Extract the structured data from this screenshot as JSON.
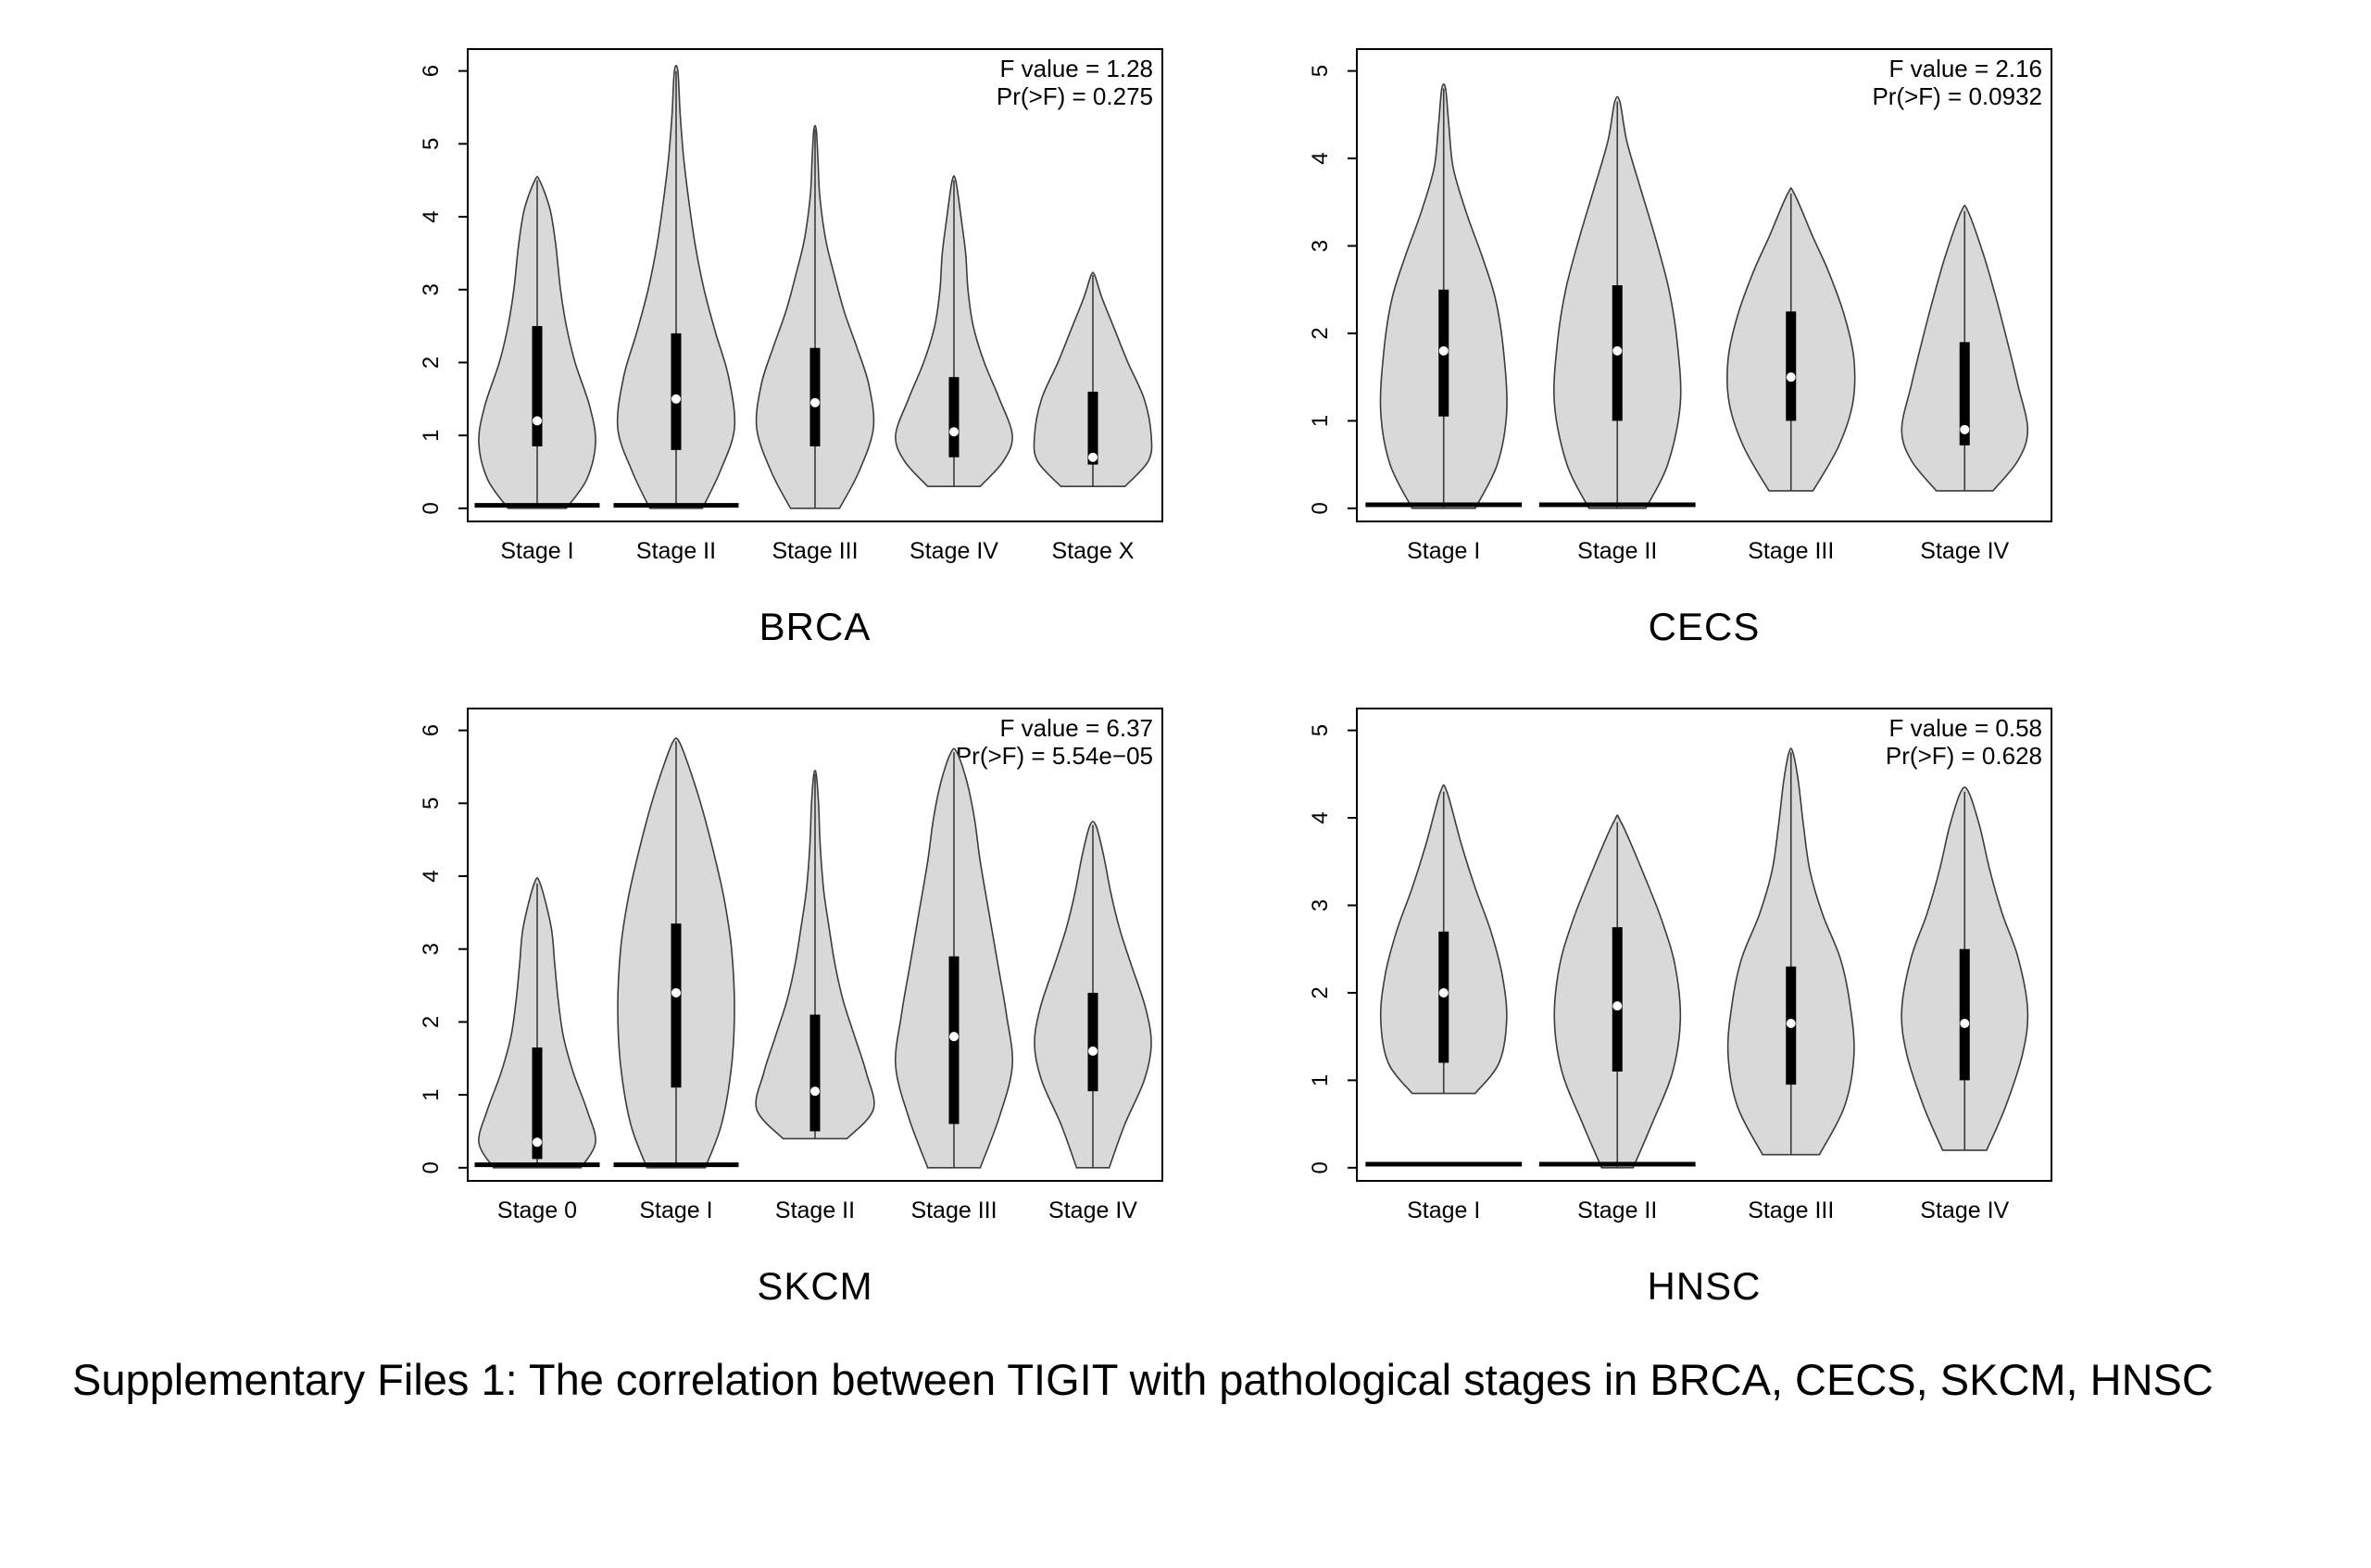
{
  "caption": "Supplementary Files 1: The correlation between TIGIT with pathological stages in BRCA, CECS, SKCM, HNSC",
  "colors": {
    "violin_fill": "#d9d9d9",
    "violin_stroke": "#3c3c3c",
    "box_color": "#000000",
    "median_color": "#ffffff",
    "axis_color": "#000000",
    "text_color": "#000000"
  },
  "chart_data": [
    {
      "type": "violin",
      "title": "BRCA",
      "stats": [
        "F value = 1.28",
        "Pr(>F) = 0.275"
      ],
      "ylabel": "",
      "ylim": [
        0,
        6
      ],
      "yticks": [
        0,
        1,
        2,
        3,
        4,
        5,
        6
      ],
      "categories": [
        "Stage I",
        "Stage II",
        "Stage III",
        "Stage IV",
        "Stage X"
      ],
      "violins": [
        {
          "category": "Stage I",
          "range": [
            0,
            4.5
          ],
          "box": [
            0.85,
            2.5
          ],
          "median": 1.2,
          "zero_line": true,
          "profile": [
            [
              0,
              0.5
            ],
            [
              0.4,
              0.85
            ],
            [
              0.9,
              1.0
            ],
            [
              1.4,
              0.9
            ],
            [
              2.0,
              0.65
            ],
            [
              2.5,
              0.5
            ],
            [
              3.0,
              0.4
            ],
            [
              3.6,
              0.32
            ],
            [
              4.1,
              0.22
            ],
            [
              4.5,
              0.04
            ]
          ]
        },
        {
          "category": "Stage II",
          "range": [
            0,
            6.0
          ],
          "box": [
            0.8,
            2.4
          ],
          "median": 1.5,
          "zero_line": true,
          "profile": [
            [
              0,
              0.45
            ],
            [
              0.5,
              0.75
            ],
            [
              1.1,
              1.0
            ],
            [
              1.8,
              0.9
            ],
            [
              2.4,
              0.68
            ],
            [
              3.0,
              0.48
            ],
            [
              3.6,
              0.33
            ],
            [
              4.2,
              0.22
            ],
            [
              4.8,
              0.13
            ],
            [
              5.4,
              0.07
            ],
            [
              6.0,
              0.03
            ]
          ]
        },
        {
          "category": "Stage III",
          "range": [
            0,
            5.2
          ],
          "box": [
            0.85,
            2.2
          ],
          "median": 1.45,
          "zero_line": false,
          "profile": [
            [
              0,
              0.42
            ],
            [
              0.5,
              0.75
            ],
            [
              1.1,
              1.0
            ],
            [
              1.7,
              0.92
            ],
            [
              2.2,
              0.72
            ],
            [
              2.7,
              0.5
            ],
            [
              3.2,
              0.33
            ],
            [
              3.7,
              0.18
            ],
            [
              4.3,
              0.08
            ],
            [
              4.8,
              0.05
            ],
            [
              5.2,
              0.02
            ]
          ]
        },
        {
          "category": "Stage IV",
          "range": [
            0.3,
            4.5
          ],
          "box": [
            0.7,
            1.8
          ],
          "median": 1.05,
          "zero_line": false,
          "profile": [
            [
              0.3,
              0.45
            ],
            [
              0.65,
              0.85
            ],
            [
              1.0,
              1.0
            ],
            [
              1.5,
              0.78
            ],
            [
              2.0,
              0.52
            ],
            [
              2.5,
              0.33
            ],
            [
              3.0,
              0.24
            ],
            [
              3.5,
              0.2
            ],
            [
              4.0,
              0.12
            ],
            [
              4.5,
              0.03
            ]
          ]
        },
        {
          "category": "Stage X",
          "range": [
            0.3,
            3.2
          ],
          "box": [
            0.6,
            1.6
          ],
          "median": 0.7,
          "zero_line": false,
          "profile": [
            [
              0.3,
              0.55
            ],
            [
              0.65,
              0.95
            ],
            [
              1.0,
              1.0
            ],
            [
              1.5,
              0.88
            ],
            [
              2.0,
              0.6
            ],
            [
              2.5,
              0.35
            ],
            [
              2.9,
              0.15
            ],
            [
              3.2,
              0.03
            ]
          ]
        }
      ]
    },
    {
      "type": "violin",
      "title": "CECS",
      "stats": [
        "F value = 2.16",
        "Pr(>F) = 0.0932"
      ],
      "ylabel": "",
      "ylim": [
        0,
        5
      ],
      "yticks": [
        0,
        1,
        2,
        3,
        4,
        5
      ],
      "categories": [
        "Stage I",
        "Stage II",
        "Stage III",
        "Stage IV"
      ],
      "violins": [
        {
          "category": "Stage I",
          "range": [
            0,
            4.8
          ],
          "box": [
            1.05,
            2.5
          ],
          "median": 1.8,
          "zero_line": true,
          "profile": [
            [
              0,
              0.5
            ],
            [
              0.5,
              0.85
            ],
            [
              1.1,
              1.0
            ],
            [
              1.8,
              0.95
            ],
            [
              2.4,
              0.82
            ],
            [
              2.9,
              0.6
            ],
            [
              3.4,
              0.35
            ],
            [
              3.9,
              0.15
            ],
            [
              4.4,
              0.08
            ],
            [
              4.8,
              0.03
            ]
          ]
        },
        {
          "category": "Stage II",
          "range": [
            0,
            4.65
          ],
          "box": [
            1.0,
            2.55
          ],
          "median": 1.8,
          "zero_line": true,
          "profile": [
            [
              0,
              0.45
            ],
            [
              0.5,
              0.8
            ],
            [
              1.2,
              1.0
            ],
            [
              1.9,
              0.95
            ],
            [
              2.5,
              0.82
            ],
            [
              3.1,
              0.6
            ],
            [
              3.7,
              0.35
            ],
            [
              4.2,
              0.15
            ],
            [
              4.65,
              0.04
            ]
          ]
        },
        {
          "category": "Stage III",
          "range": [
            0.2,
            3.6
          ],
          "box": [
            1.0,
            2.25
          ],
          "median": 1.5,
          "zero_line": false,
          "profile": [
            [
              0.2,
              0.35
            ],
            [
              0.7,
              0.75
            ],
            [
              1.2,
              0.98
            ],
            [
              1.7,
              1.0
            ],
            [
              2.2,
              0.85
            ],
            [
              2.7,
              0.6
            ],
            [
              3.1,
              0.35
            ],
            [
              3.6,
              0.05
            ]
          ]
        },
        {
          "category": "Stage IV",
          "range": [
            0.2,
            3.4
          ],
          "box": [
            0.72,
            1.9
          ],
          "median": 0.9,
          "zero_line": false,
          "profile": [
            [
              0.2,
              0.45
            ],
            [
              0.55,
              0.85
            ],
            [
              0.9,
              1.0
            ],
            [
              1.4,
              0.85
            ],
            [
              1.9,
              0.68
            ],
            [
              2.4,
              0.5
            ],
            [
              2.9,
              0.3
            ],
            [
              3.4,
              0.05
            ]
          ]
        }
      ]
    },
    {
      "type": "violin",
      "title": "SKCM",
      "stats": [
        "F value = 6.37",
        "Pr(>F) = 5.54e−05"
      ],
      "ylabel": "",
      "ylim": [
        0,
        6
      ],
      "yticks": [
        0,
        1,
        2,
        3,
        4,
        5,
        6
      ],
      "categories": [
        "Stage 0",
        "Stage I",
        "Stage II",
        "Stage III",
        "Stage IV"
      ],
      "violins": [
        {
          "category": "Stage 0",
          "range": [
            0,
            3.9
          ],
          "box": [
            0.12,
            1.65
          ],
          "median": 0.35,
          "zero_line": true,
          "profile": [
            [
              0,
              0.75
            ],
            [
              0.35,
              1.0
            ],
            [
              0.8,
              0.85
            ],
            [
              1.3,
              0.62
            ],
            [
              1.8,
              0.45
            ],
            [
              2.3,
              0.36
            ],
            [
              2.8,
              0.3
            ],
            [
              3.3,
              0.24
            ],
            [
              3.9,
              0.05
            ]
          ]
        },
        {
          "category": "Stage I",
          "range": [
            0,
            5.85
          ],
          "box": [
            1.1,
            3.35
          ],
          "median": 2.4,
          "zero_line": true,
          "profile": [
            [
              0,
              0.5
            ],
            [
              0.6,
              0.78
            ],
            [
              1.4,
              0.95
            ],
            [
              2.2,
              1.0
            ],
            [
              3.0,
              0.95
            ],
            [
              3.7,
              0.82
            ],
            [
              4.4,
              0.62
            ],
            [
              5.0,
              0.42
            ],
            [
              5.5,
              0.22
            ],
            [
              5.85,
              0.05
            ]
          ]
        },
        {
          "category": "Stage II",
          "range": [
            0.4,
            5.4
          ],
          "box": [
            0.5,
            2.1
          ],
          "median": 1.05,
          "zero_line": false,
          "profile": [
            [
              0.4,
              0.55
            ],
            [
              0.8,
              1.0
            ],
            [
              1.3,
              0.88
            ],
            [
              1.8,
              0.68
            ],
            [
              2.3,
              0.48
            ],
            [
              2.8,
              0.34
            ],
            [
              3.3,
              0.24
            ],
            [
              3.8,
              0.15
            ],
            [
              4.4,
              0.09
            ],
            [
              5.0,
              0.06
            ],
            [
              5.4,
              0.02
            ]
          ]
        },
        {
          "category": "Stage III",
          "range": [
            0,
            5.7
          ],
          "box": [
            0.6,
            2.9
          ],
          "median": 1.8,
          "zero_line": false,
          "profile": [
            [
              0,
              0.45
            ],
            [
              0.7,
              0.78
            ],
            [
              1.4,
              1.0
            ],
            [
              2.1,
              0.9
            ],
            [
              2.8,
              0.75
            ],
            [
              3.5,
              0.6
            ],
            [
              4.2,
              0.45
            ],
            [
              4.8,
              0.35
            ],
            [
              5.3,
              0.22
            ],
            [
              5.7,
              0.05
            ]
          ]
        },
        {
          "category": "Stage IV",
          "range": [
            0,
            4.7
          ],
          "box": [
            1.05,
            2.4
          ],
          "median": 1.6,
          "zero_line": false,
          "profile": [
            [
              0,
              0.28
            ],
            [
              0.6,
              0.55
            ],
            [
              1.2,
              0.88
            ],
            [
              1.7,
              1.0
            ],
            [
              2.2,
              0.9
            ],
            [
              2.8,
              0.65
            ],
            [
              3.3,
              0.45
            ],
            [
              3.8,
              0.3
            ],
            [
              4.3,
              0.18
            ],
            [
              4.7,
              0.05
            ]
          ]
        }
      ]
    },
    {
      "type": "violin",
      "title": "HNSC",
      "stats": [
        "F value = 0.58",
        "Pr(>F) = 0.628"
      ],
      "ylabel": "",
      "ylim": [
        0,
        5
      ],
      "yticks": [
        0,
        1,
        2,
        3,
        4,
        5
      ],
      "categories": [
        "Stage I",
        "Stage II",
        "Stage III",
        "Stage IV"
      ],
      "violins": [
        {
          "category": "Stage I",
          "range": [
            0.85,
            4.3
          ],
          "box": [
            1.2,
            2.7
          ],
          "median": 2.0,
          "zero_line": true,
          "profile": [
            [
              0.85,
              0.5
            ],
            [
              1.2,
              0.88
            ],
            [
              1.7,
              1.0
            ],
            [
              2.2,
              0.93
            ],
            [
              2.7,
              0.75
            ],
            [
              3.2,
              0.5
            ],
            [
              3.7,
              0.28
            ],
            [
              4.3,
              0.05
            ]
          ]
        },
        {
          "category": "Stage II",
          "range": [
            0,
            3.95
          ],
          "box": [
            1.1,
            2.75
          ],
          "median": 1.85,
          "zero_line": true,
          "profile": [
            [
              0,
              0.25
            ],
            [
              0.5,
              0.55
            ],
            [
              1.1,
              0.88
            ],
            [
              1.7,
              1.0
            ],
            [
              2.3,
              0.92
            ],
            [
              2.8,
              0.72
            ],
            [
              3.3,
              0.45
            ],
            [
              3.95,
              0.06
            ]
          ]
        },
        {
          "category": "Stage III",
          "range": [
            0.15,
            4.75
          ],
          "box": [
            0.95,
            2.3
          ],
          "median": 1.65,
          "zero_line": false,
          "profile": [
            [
              0.15,
              0.45
            ],
            [
              0.7,
              0.85
            ],
            [
              1.3,
              1.0
            ],
            [
              1.9,
              0.93
            ],
            [
              2.4,
              0.78
            ],
            [
              2.9,
              0.5
            ],
            [
              3.4,
              0.3
            ],
            [
              3.9,
              0.2
            ],
            [
              4.4,
              0.12
            ],
            [
              4.75,
              0.03
            ]
          ]
        },
        {
          "category": "Stage IV",
          "range": [
            0.2,
            4.3
          ],
          "box": [
            1.0,
            2.5
          ],
          "median": 1.65,
          "zero_line": false,
          "profile": [
            [
              0.2,
              0.35
            ],
            [
              0.7,
              0.65
            ],
            [
              1.3,
              0.92
            ],
            [
              1.8,
              1.0
            ],
            [
              2.4,
              0.85
            ],
            [
              2.9,
              0.6
            ],
            [
              3.4,
              0.4
            ],
            [
              3.9,
              0.24
            ],
            [
              4.3,
              0.06
            ]
          ]
        }
      ]
    }
  ]
}
